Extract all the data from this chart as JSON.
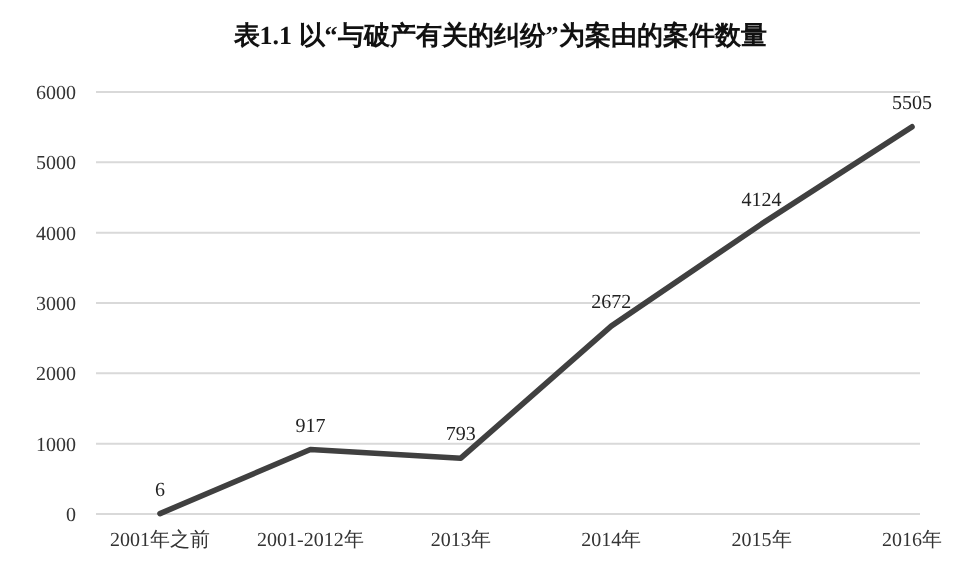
{
  "chart_data": {
    "type": "line",
    "title": "表1.1 以“与破产有关的纠纷”为案由的案件数量",
    "categories": [
      "2001年之前",
      "2001-2012年",
      "2013年",
      "2014年",
      "2015年",
      "2016年"
    ],
    "series": [
      {
        "color": "#404040",
        "values": [
          6,
          917,
          793,
          2672,
          4124,
          5505
        ]
      }
    ],
    "ylim": [
      0,
      6000
    ],
    "yticks": [
      0,
      1000,
      2000,
      3000,
      4000,
      5000,
      6000
    ],
    "grid": "y",
    "data_labels": true,
    "marker": "none",
    "line_style": "solid"
  }
}
